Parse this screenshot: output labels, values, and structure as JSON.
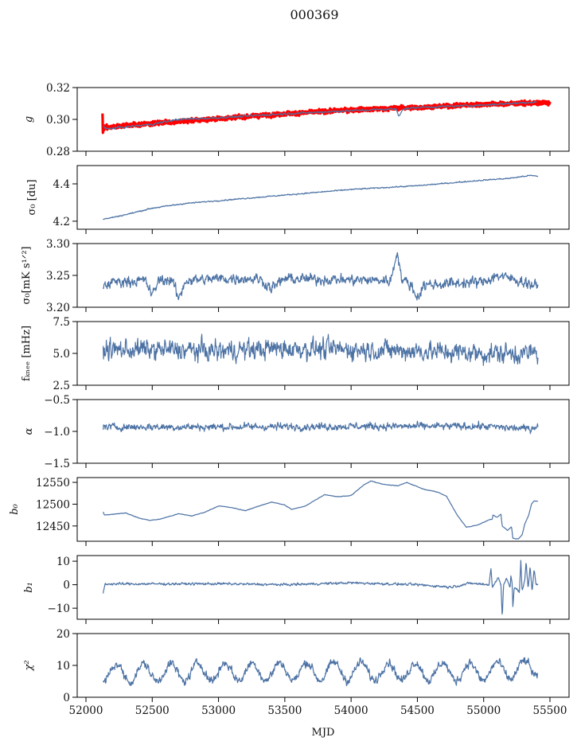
{
  "chart_data": {
    "type": "line",
    "title": "000369",
    "xlabel": "MJD",
    "xlim": [
      51934,
      55644
    ],
    "xticks": [
      52000,
      52500,
      53000,
      53500,
      54000,
      54500,
      55000,
      55500
    ],
    "xtick_labels": [
      "52000",
      "52500",
      "53000",
      "53500",
      "54000",
      "54500",
      "55000",
      "55500"
    ],
    "line_color": "#4c72a4",
    "fit_color": "#ff0000",
    "panels": [
      {
        "ylabel": "g",
        "ylim": [
          0.28,
          0.32
        ],
        "yticks": [
          0.28,
          0.3,
          0.32
        ],
        "ytick_labels": [
          "0.28",
          "0.30",
          "0.32"
        ],
        "fit_band": {
          "name": "model",
          "noise": 0.0012,
          "points": [
            [
              52125,
              0.303
            ],
            [
              52128,
              0.292
            ],
            [
              52140,
              0.295
            ],
            [
              52500,
              0.2975
            ],
            [
              53000,
              0.3005
            ],
            [
              53500,
              0.3035
            ],
            [
              54000,
              0.306
            ],
            [
              54500,
              0.3075
            ],
            [
              55000,
              0.3095
            ],
            [
              55500,
              0.3105
            ]
          ]
        },
        "series": {
          "name": "g",
          "noise": 0.0006,
          "points": [
            [
              52130,
              0.296
            ],
            [
              52150,
              0.294
            ],
            [
              52500,
              0.297
            ],
            [
              52700,
              0.3
            ],
            [
              53000,
              0.301
            ],
            [
              53500,
              0.3035
            ],
            [
              54000,
              0.3055
            ],
            [
              54300,
              0.3065
            ],
            [
              54340,
              0.3065
            ],
            [
              54360,
              0.302
            ],
            [
              54390,
              0.3065
            ],
            [
              54500,
              0.3075
            ],
            [
              55000,
              0.309
            ],
            [
              55400,
              0.311
            ]
          ]
        }
      },
      {
        "ylabel": "σ₀ [du]",
        "ylim": [
          4.157,
          4.498
        ],
        "yticks": [
          4.2,
          4.4
        ],
        "ytick_labels": [
          "4.2",
          "4.4"
        ],
        "series": {
          "name": "sigma0_du",
          "noise": 0.003,
          "points": [
            [
              52130,
              4.21
            ],
            [
              52300,
              4.235
            ],
            [
              52500,
              4.27
            ],
            [
              52750,
              4.295
            ],
            [
              53000,
              4.31
            ],
            [
              53250,
              4.325
            ],
            [
              53500,
              4.34
            ],
            [
              53750,
              4.355
            ],
            [
              54000,
              4.37
            ],
            [
              54250,
              4.38
            ],
            [
              54500,
              4.39
            ],
            [
              54750,
              4.405
            ],
            [
              55000,
              4.42
            ],
            [
              55200,
              4.43
            ],
            [
              55350,
              4.445
            ],
            [
              55410,
              4.44
            ]
          ]
        }
      },
      {
        "ylabel": "σ₀[mK s¹ᐟ²]",
        "ylim": [
          3.2,
          3.3
        ],
        "yticks": [
          3.2,
          3.25,
          3.3
        ],
        "ytick_labels": [
          "3.20",
          "3.25",
          "3.30"
        ],
        "series": {
          "name": "sigma0_mK",
          "noise": 0.008,
          "points": [
            [
              52130,
              3.232
            ],
            [
              52200,
              3.24
            ],
            [
              52450,
              3.242
            ],
            [
              52500,
              3.218
            ],
            [
              52550,
              3.243
            ],
            [
              52650,
              3.243
            ],
            [
              52700,
              3.212
            ],
            [
              52750,
              3.242
            ],
            [
              53000,
              3.245
            ],
            [
              53300,
              3.245
            ],
            [
              53400,
              3.23
            ],
            [
              53500,
              3.245
            ],
            [
              54000,
              3.243
            ],
            [
              54300,
              3.242
            ],
            [
              54350,
              3.29
            ],
            [
              54380,
              3.245
            ],
            [
              54450,
              3.235
            ],
            [
              54500,
              3.215
            ],
            [
              54550,
              3.235
            ],
            [
              55000,
              3.24
            ],
            [
              55100,
              3.25
            ],
            [
              55300,
              3.24
            ],
            [
              55410,
              3.232
            ]
          ]
        }
      },
      {
        "ylabel": "fₖₙₑₑ [mHz]",
        "ylim": [
          2.5,
          7.5
        ],
        "yticks": [
          2.5,
          5.0,
          7.5
        ],
        "ytick_labels": [
          "2.5",
          "5.0",
          "7.5"
        ],
        "series": {
          "name": "f_knee",
          "noise": 0.75,
          "points": [
            [
              52130,
              5.3
            ],
            [
              52500,
              5.3
            ],
            [
              53000,
              5.2
            ],
            [
              53500,
              5.4
            ],
            [
              54000,
              5.3
            ],
            [
              54500,
              5.2
            ],
            [
              55000,
              5.0
            ],
            [
              55410,
              5.0
            ]
          ]
        }
      },
      {
        "ylabel": "α",
        "ylim": [
          -1.5,
          -0.5
        ],
        "yticks": [
          -1.5,
          -1.0,
          -0.5
        ],
        "ytick_labels": [
          "−1.5",
          "−1.0",
          "−0.5"
        ],
        "series": {
          "name": "alpha",
          "noise": 0.055,
          "points": [
            [
              52130,
              -0.93
            ],
            [
              53000,
              -0.93
            ],
            [
              54000,
              -0.92
            ],
            [
              55000,
              -0.92
            ],
            [
              55350,
              -0.96
            ],
            [
              55410,
              -0.9
            ]
          ]
        }
      },
      {
        "ylabel": "b₀",
        "ylim": [
          12415,
          12561
        ],
        "yticks": [
          12450,
          12500,
          12550
        ],
        "ytick_labels": [
          "12450",
          "12500",
          "12550"
        ],
        "series": {
          "name": "b0",
          "noise": 0.6,
          "points": [
            [
              52130,
              12482
            ],
            [
              52140,
              12475
            ],
            [
              52300,
              12480
            ],
            [
              52400,
              12468
            ],
            [
              52480,
              12463
            ],
            [
              52550,
              12465
            ],
            [
              52700,
              12478
            ],
            [
              52800,
              12473
            ],
            [
              52900,
              12482
            ],
            [
              53000,
              12496
            ],
            [
              53100,
              12492
            ],
            [
              53200,
              12485
            ],
            [
              53400,
              12505
            ],
            [
              53500,
              12498
            ],
            [
              53550,
              12488
            ],
            [
              53650,
              12495
            ],
            [
              53800,
              12522
            ],
            [
              53900,
              12517
            ],
            [
              54000,
              12520
            ],
            [
              54100,
              12545
            ],
            [
              54150,
              12553
            ],
            [
              54250,
              12545
            ],
            [
              54350,
              12542
            ],
            [
              54420,
              12550
            ],
            [
              54550,
              12534
            ],
            [
              54650,
              12528
            ],
            [
              54720,
              12518
            ],
            [
              54800,
              12475
            ],
            [
              54870,
              12447
            ],
            [
              54950,
              12452
            ],
            [
              55050,
              12465
            ],
            [
              55065,
              12466
            ],
            [
              55070,
              12475
            ],
            [
              55100,
              12470
            ],
            [
              55130,
              12477
            ],
            [
              55140,
              12450
            ],
            [
              55180,
              12440
            ],
            [
              55210,
              12448
            ],
            [
              55220,
              12422
            ],
            [
              55260,
              12420
            ],
            [
              55290,
              12430
            ],
            [
              55310,
              12455
            ],
            [
              55340,
              12475
            ],
            [
              55360,
              12500
            ],
            [
              55380,
              12507
            ],
            [
              55410,
              12507
            ]
          ]
        }
      },
      {
        "ylabel": "b₁",
        "ylim": [
          -14.7,
          12.4
        ],
        "yticks": [
          -10,
          0,
          10
        ],
        "ytick_labels": [
          "−10",
          "0",
          "10"
        ],
        "series": {
          "name": "b1",
          "noise": 0.5,
          "points": [
            [
              52130,
              -3.5
            ],
            [
              52145,
              0.3
            ],
            [
              53000,
              0.4
            ],
            [
              53500,
              0.0
            ],
            [
              54000,
              0.8
            ],
            [
              54500,
              0.0
            ],
            [
              54750,
              -1.0
            ],
            [
              54900,
              0.6
            ],
            [
              55040,
              0.0
            ],
            [
              55055,
              7
            ],
            [
              55065,
              -1
            ],
            [
              55110,
              3
            ],
            [
              55130,
              0
            ],
            [
              55140,
              -14
            ],
            [
              55150,
              0
            ],
            [
              55170,
              3
            ],
            [
              55200,
              -1
            ],
            [
              55205,
              4
            ],
            [
              55215,
              0
            ],
            [
              55220,
              -10
            ],
            [
              55230,
              -1
            ],
            [
              55270,
              -3
            ],
            [
              55280,
              10
            ],
            [
              55290,
              -3
            ],
            [
              55310,
              2
            ],
            [
              55320,
              10
            ],
            [
              55335,
              -2
            ],
            [
              55350,
              8
            ],
            [
              55365,
              -3
            ],
            [
              55380,
              7
            ],
            [
              55395,
              0
            ],
            [
              55410,
              -0.3
            ]
          ]
        }
      },
      {
        "ylabel": "χ²",
        "ylim": [
          0,
          20
        ],
        "yticks": [
          0,
          10,
          20
        ],
        "ytick_labels": [
          "0",
          "10",
          "20"
        ],
        "series": {
          "name": "chi2",
          "noise": 1.3,
          "period": 205,
          "amplitude": 2.8,
          "phase_mjd": 52230,
          "points": [
            [
              52130,
              7.5
            ],
            [
              53000,
              8.0
            ],
            [
              54000,
              8.2
            ],
            [
              55000,
              8.0
            ],
            [
              55410,
              9.0
            ]
          ]
        }
      }
    ]
  }
}
